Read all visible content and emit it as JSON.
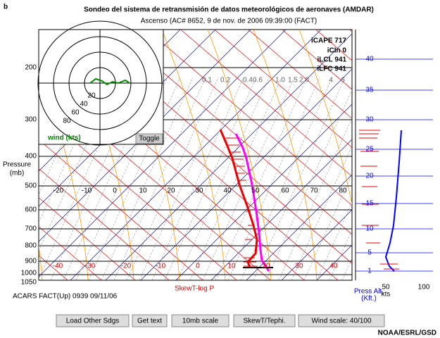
{
  "corner_label": "b",
  "header": {
    "title": "Sondeo del sistema de retransmisión de datos meteorológicos de aeronaves (AMDAR)",
    "subtitle": "Ascenso (AC# 8652, 9 de nov. de 2006 09:39:00 (FACT)"
  },
  "pressure_axis": {
    "label": [
      "Pressure",
      "(mb)"
    ],
    "ticks": [
      "200",
      "300",
      "400",
      "500",
      "600",
      "700",
      "800",
      "900",
      "1000",
      "1050"
    ]
  },
  "temperature_upper": [
    "-20",
    "-10",
    "0",
    "10",
    "20",
    "30",
    "40",
    "50",
    "60",
    "70",
    "80"
  ],
  "temperature_lower": [
    "-40",
    "-30",
    "-20",
    "-10",
    "0",
    "10",
    "20",
    "30",
    "40"
  ],
  "mixing_ratio": [
    "0.1",
    "0.2",
    "0.4",
    "0.6",
    "1.0",
    "1.5",
    "2.0",
    "4",
    "6"
  ],
  "indices": [
    "iCAPE 717",
    "iCIn 0",
    "iLCL 941",
    "iLFC 941"
  ],
  "hodograph": {
    "rings": [
      "20",
      "40",
      "60",
      "80"
    ],
    "label": "wind (kts)",
    "toggle": "Toggle"
  },
  "wind_panel": {
    "heights": [
      "40",
      "35",
      "30",
      "25",
      "20",
      "15",
      "10",
      "5",
      "1"
    ],
    "axis_label": [
      "Press Alt.",
      "(Kft.)"
    ],
    "speeds": [
      "50",
      "100"
    ],
    "unit": "kts"
  },
  "station": "ACARS FACT(Up) 0939 09/11/06",
  "diagram_name": "SkewT-log P",
  "buttons": [
    "Load Other Sdgs",
    "Get text",
    "10mb scale",
    "SkewT/Tephi.",
    "Wind scale: 40/100"
  ],
  "credit": "NOAA/ESRL/GSD"
}
